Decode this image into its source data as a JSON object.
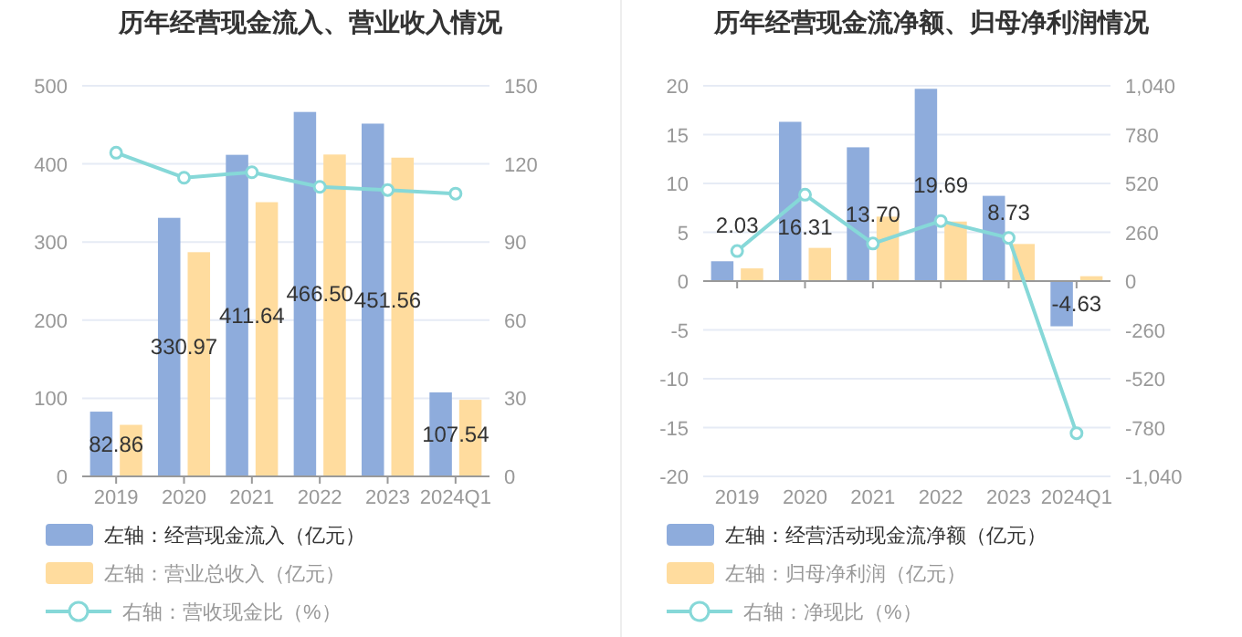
{
  "chart_data": [
    {
      "type": "bar",
      "title": "历年经营现金流入、营业收入情况",
      "categories": [
        "2019",
        "2020",
        "2021",
        "2022",
        "2023",
        "2024Q1"
      ],
      "series": [
        {
          "name": "左轴：经营现金流入（亿元）",
          "color": "#8eacdc",
          "values": [
            82.86,
            330.97,
            411.64,
            466.5,
            451.56,
            107.54
          ],
          "value_labels": [
            "82.86",
            "330.97",
            "411.64",
            "466.50",
            "451.56",
            "107.54"
          ]
        },
        {
          "name": "左轴：营业总收入（亿元）",
          "color": "#ffdc9e",
          "values": [
            66,
            287,
            351,
            412,
            408,
            98
          ]
        },
        {
          "name": "右轴：营收现金比（%）",
          "type": "line",
          "axis": "y2",
          "color": "#86d8d8",
          "values": [
            124.3,
            114.7,
            116.8,
            111.2,
            110,
            108.6
          ]
        }
      ],
      "ylim": [
        0,
        500
      ],
      "yticks": [
        0,
        100,
        200,
        300,
        400,
        500
      ],
      "y2lim": [
        0,
        150
      ],
      "y2ticks": [
        0,
        30,
        60,
        90,
        120,
        150
      ],
      "grid": "y",
      "legend": "bottom",
      "marker": "circle"
    },
    {
      "type": "bar",
      "title": "历年经营现金流净额、归母净利润情况",
      "categories": [
        "2019",
        "2020",
        "2021",
        "2022",
        "2023",
        "2024Q1"
      ],
      "series": [
        {
          "name": "左轴：经营活动现金流净额（亿元）",
          "color": "#8eacdc",
          "values": [
            2.03,
            16.31,
            13.7,
            19.69,
            8.73,
            -4.63
          ],
          "value_labels": [
            "2.03",
            "16.31",
            "13.70",
            "19.69",
            "8.73",
            "-4.63"
          ]
        },
        {
          "name": "左轴：归母净利润（亿元）",
          "color": "#ffdc9e",
          "values": [
            1.3,
            3.4,
            6.6,
            6.1,
            3.8,
            0.5
          ]
        },
        {
          "name": "右轴：净现比（%）",
          "type": "line",
          "axis": "y2",
          "color": "#86d8d8",
          "values": [
            160,
            460,
            200,
            320,
            230,
            -810
          ]
        }
      ],
      "ylim": [
        -20,
        20
      ],
      "yticks": [
        -20,
        -15,
        -10,
        -5,
        0,
        5,
        10,
        15,
        20
      ],
      "y2lim": [
        -1040,
        1040
      ],
      "y2ticks": [
        {
          "value": -1040,
          "label": "-1,040"
        },
        -780,
        -520,
        -260,
        0,
        260,
        520,
        780,
        {
          "value": 1040,
          "label": "1,040"
        }
      ],
      "grid": "y",
      "legend": "bottom",
      "marker": "circle"
    }
  ]
}
